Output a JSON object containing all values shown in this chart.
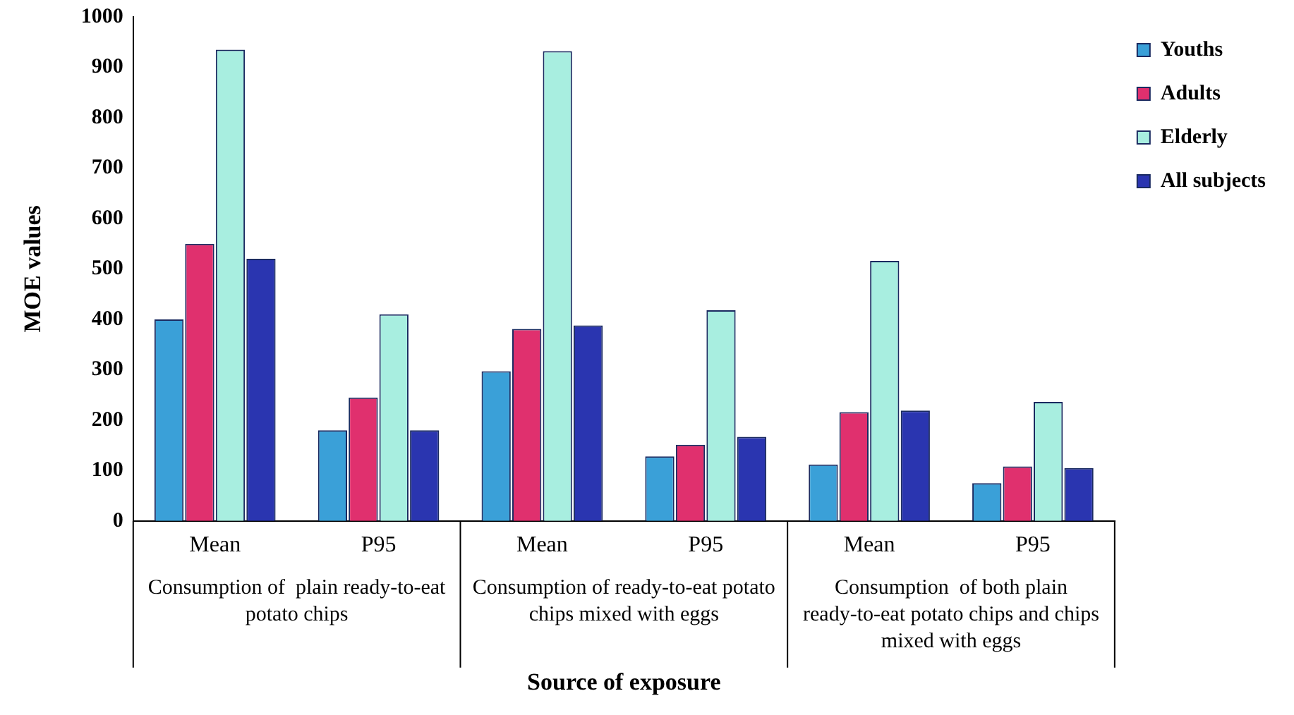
{
  "chart_data": {
    "type": "bar",
    "xlabel": "Source of exposure",
    "ylabel": "MOE values",
    "categories": [
      "Mean",
      "P95",
      "Mean",
      "P95",
      "Mean",
      "P95"
    ],
    "series": [
      {
        "name": "Youths",
        "color": "#3aa0d8",
        "values": [
          400,
          180,
          297,
          128,
          112,
          75
        ]
      },
      {
        "name": "Adults",
        "color": "#e0306e",
        "values": [
          550,
          245,
          381,
          151,
          216,
          108
        ]
      },
      {
        "name": "Elderly",
        "color": "#a8eee0",
        "values": [
          935,
          410,
          932,
          418,
          516,
          236
        ]
      },
      {
        "name": "All subjects",
        "color": "#2a35b0",
        "values": [
          520,
          180,
          388,
          167,
          219,
          105
        ]
      }
    ],
    "annotations": [
      "Consumption of  plain ready-to-eat potato chips",
      "Consumption of ready-to-eat potato chips mixed with eggs",
      "Consumption  of both plain ready-to-eat potato chips and chips mixed with eggs"
    ],
    "ylim": [
      0,
      1000
    ],
    "yticks": [
      0,
      100,
      200,
      300,
      400,
      500,
      600,
      700,
      800,
      900,
      1000
    ],
    "grid": false,
    "legend": "right"
  }
}
